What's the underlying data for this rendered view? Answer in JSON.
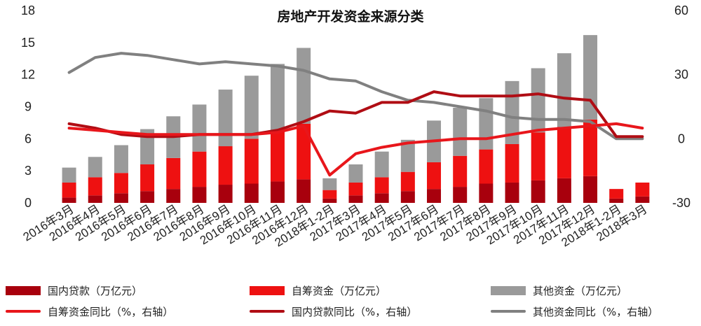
{
  "chart_data": {
    "type": "bar+line",
    "title": "房地产开发资金来源分类",
    "categories": [
      "2016年3月",
      "2016年4月",
      "2016年5月",
      "2016年6月",
      "2016年7月",
      "2016年8月",
      "2016年9月",
      "2016年10月",
      "2016年11月",
      "2016年12月",
      "2018年1-2月",
      "2017年3月",
      "2017年4月",
      "2017年5月",
      "2017年6月",
      "2017年7月",
      "2017年8月",
      "2017年9月",
      "2017年10月",
      "2017年11月",
      "2017年12月",
      "2018年1-2月",
      "2018年3月"
    ],
    "y_left": {
      "ticks": [
        "0",
        "3",
        "6",
        "9",
        "12",
        "15",
        "18"
      ],
      "lim": [
        0,
        18
      ]
    },
    "y_right": {
      "ticks": [
        "-30",
        "0",
        "30",
        "60"
      ],
      "lim": [
        -30,
        60
      ]
    },
    "bar_series": [
      {
        "name": "国内贷款（万亿元）",
        "color": "#a8000d",
        "values": [
          0.5,
          0.7,
          0.9,
          1.1,
          1.3,
          1.5,
          1.7,
          1.8,
          2.0,
          2.2,
          0.4,
          0.7,
          0.9,
          1.1,
          1.3,
          1.5,
          1.8,
          1.9,
          2.1,
          2.3,
          2.5,
          0.4,
          0.6
        ]
      },
      {
        "name": "自筹资金（万亿元）",
        "color": "#ee1111",
        "values": [
          1.4,
          1.7,
          1.9,
          2.5,
          2.9,
          3.3,
          3.6,
          4.2,
          4.8,
          5.2,
          0.8,
          1.2,
          1.5,
          1.8,
          2.5,
          2.9,
          3.2,
          3.6,
          4.5,
          4.8,
          5.3,
          0.9,
          1.3
        ]
      },
      {
        "name": "其他资金（万亿元）",
        "color": "#9a9a9a",
        "values": [
          1.4,
          1.9,
          2.6,
          3.3,
          3.9,
          4.4,
          5.3,
          5.9,
          6.2,
          7.1,
          1.1,
          1.7,
          2.4,
          3.0,
          3.9,
          4.5,
          4.8,
          5.9,
          6.0,
          6.9,
          7.9,
          0,
          0
        ]
      }
    ],
    "line_series": [
      {
        "name": "自筹资金同比（%，右轴）",
        "color": "#e8161b",
        "values": [
          5,
          4,
          3,
          2,
          2,
          2,
          2,
          2,
          3,
          6,
          -17,
          -7,
          -4,
          -2,
          -1,
          0,
          0,
          2,
          4,
          5,
          6,
          7,
          5
        ]
      },
      {
        "name": "国内贷款同比（%，右轴）",
        "color": "#b00d14",
        "values": [
          7,
          5,
          2,
          1,
          1,
          2,
          2,
          2,
          4,
          8,
          13,
          12,
          17,
          17,
          22,
          20,
          20,
          20,
          21,
          19,
          18,
          1,
          1
        ]
      },
      {
        "name": "其他资金同比（%，右轴）",
        "color": "#808080",
        "values": [
          31,
          38,
          40,
          39,
          37,
          35,
          36,
          35,
          34,
          32,
          28,
          27,
          22,
          18,
          17,
          15,
          13,
          10,
          9,
          9,
          8,
          0,
          0
        ]
      }
    ]
  },
  "legend": [
    {
      "label": "国内贷款（万亿元）",
      "kind": "bar",
      "color": "#a8000d"
    },
    {
      "label": "自筹资金（万亿元）",
      "kind": "bar",
      "color": "#ee1111"
    },
    {
      "label": "其他资金（万亿元）",
      "kind": "bar",
      "color": "#9a9a9a"
    },
    {
      "label": "自筹资金同比（%，右轴）",
      "kind": "line",
      "color": "#e8161b"
    },
    {
      "label": "国内贷款同比（%，右轴）",
      "kind": "line",
      "color": "#b00d14"
    },
    {
      "label": "其他资金同比（%，右轴）",
      "kind": "line",
      "color": "#808080"
    }
  ]
}
